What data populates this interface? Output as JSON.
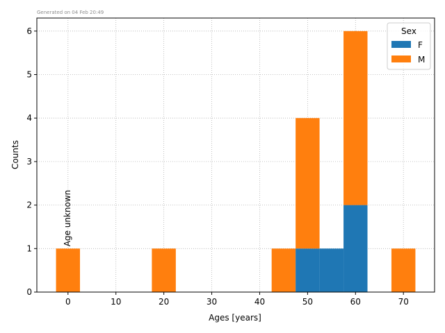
{
  "generated_note": "Generated on 04 Feb 20:49",
  "chart_data": {
    "type": "bar",
    "stacked": true,
    "xlabel": "Ages [years]",
    "ylabel": "Counts",
    "xlim": [
      -6.5,
      76.5
    ],
    "ylim": [
      0,
      6.3
    ],
    "xticks": [
      0,
      10,
      20,
      30,
      40,
      50,
      60,
      70
    ],
    "yticks": [
      0,
      1,
      2,
      3,
      4,
      5,
      6
    ],
    "grid": true,
    "bin_width": 5,
    "bin_centers": [
      0,
      20,
      45,
      50,
      55,
      60,
      70
    ],
    "series": [
      {
        "name": "F",
        "color": "#1f77b4",
        "values": [
          0,
          0,
          0,
          1,
          1,
          2,
          0
        ]
      },
      {
        "name": "M",
        "color": "#ff7f0e",
        "values": [
          1,
          1,
          1,
          3,
          0,
          4,
          1
        ]
      }
    ],
    "legend": {
      "title": "Sex",
      "placement": "top-right",
      "entries": [
        "F",
        "M"
      ]
    },
    "annotation": {
      "text": "Age unknown",
      "x": 0,
      "y": 1
    }
  }
}
